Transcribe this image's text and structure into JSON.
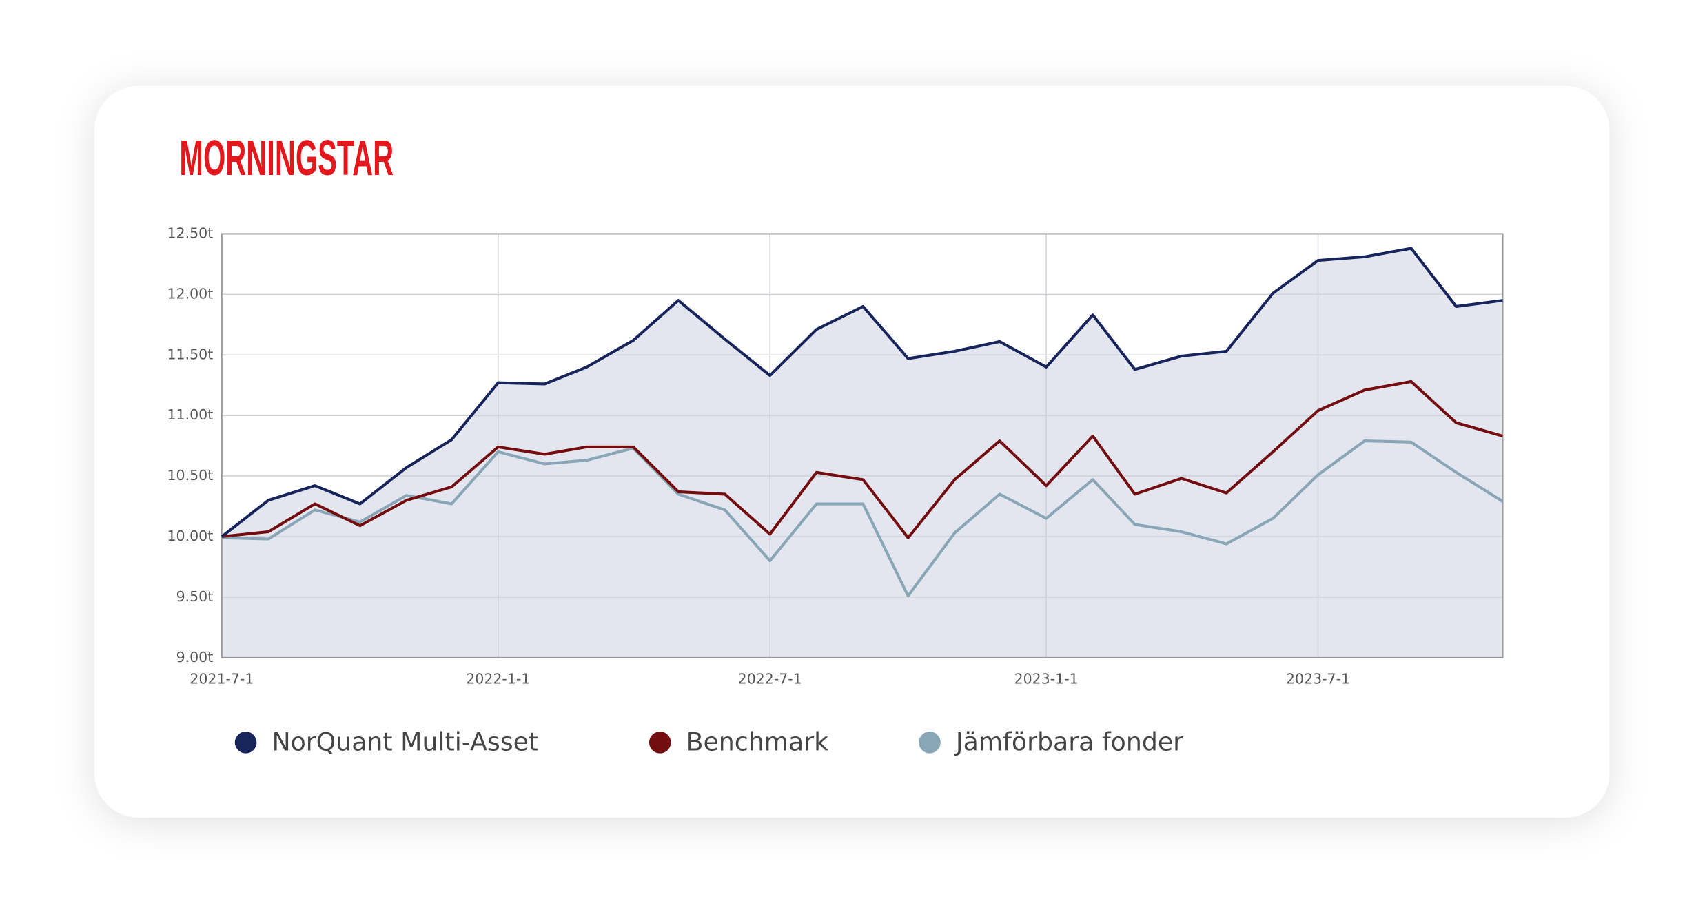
{
  "logo": "MORNINGSTAR",
  "chart_data": {
    "type": "line",
    "x": [
      "2021-7-1",
      "2021-8-1",
      "2021-9-1",
      "2021-10-1",
      "2021-11-1",
      "2021-12-1",
      "2022-1-1",
      "2022-2-1",
      "2022-3-1",
      "2022-4-1",
      "2022-5-1",
      "2022-6-1",
      "2022-7-1",
      "2022-8-1",
      "2022-9-1",
      "2022-10-1",
      "2022-11-1",
      "2022-12-1",
      "2023-1-1",
      "2023-2-1",
      "2023-3-1",
      "2023-4-1",
      "2023-5-1",
      "2023-6-1",
      "2023-7-1",
      "2023-8-1",
      "2023-9-1",
      "2023-10-1",
      "2023-11-1"
    ],
    "series": [
      {
        "name": "NorQuant Multi-Asset",
        "color": "#17255c",
        "area": true,
        "area_color": "#e4e6ef",
        "values": [
          10.0,
          10.3,
          10.42,
          10.27,
          10.57,
          10.8,
          11.27,
          11.26,
          11.4,
          11.62,
          11.95,
          11.63,
          11.33,
          11.71,
          11.9,
          11.47,
          11.53,
          11.61,
          11.4,
          11.83,
          11.38,
          11.49,
          11.53,
          12.01,
          12.28,
          12.31,
          12.38,
          11.9,
          11.95
        ]
      },
      {
        "name": "Benchmark",
        "color": "#730d0f",
        "values": [
          10.0,
          10.04,
          10.27,
          10.09,
          10.3,
          10.41,
          10.74,
          10.68,
          10.74,
          10.74,
          10.37,
          10.35,
          10.02,
          10.53,
          10.47,
          9.99,
          10.47,
          10.79,
          10.42,
          10.83,
          10.35,
          10.48,
          10.36,
          10.7,
          11.04,
          11.21,
          11.28,
          10.94,
          10.83
        ]
      },
      {
        "name": "Jämförbara fonder",
        "color": "#88a6b6",
        "values": [
          9.99,
          9.98,
          10.22,
          10.12,
          10.34,
          10.27,
          10.7,
          10.6,
          10.63,
          10.73,
          10.35,
          10.22,
          9.8,
          10.27,
          10.27,
          9.51,
          10.03,
          10.35,
          10.15,
          10.47,
          10.1,
          10.04,
          9.94,
          10.15,
          10.51,
          10.79,
          10.78,
          10.53,
          10.29
        ]
      }
    ],
    "xlim": [
      "2021-7-1",
      "2023-11-1"
    ],
    "xticks": [
      "2021-7-1",
      "2022-1-1",
      "2022-7-1",
      "2023-1-1",
      "2023-7-1"
    ],
    "ylim": [
      9,
      12.5
    ],
    "yticks": [
      {
        "value": 9,
        "label": "9.00t"
      },
      {
        "value": 9.5,
        "label": "9.50t"
      },
      {
        "value": 10,
        "label": "10.00t"
      },
      {
        "value": 10.5,
        "label": "10.50t"
      },
      {
        "value": 11,
        "label": "11.00t"
      },
      {
        "value": 11.5,
        "label": "11.50t"
      },
      {
        "value": 12,
        "label": "12.00t"
      },
      {
        "value": 12.5,
        "label": "12.50t"
      }
    ],
    "grid": true
  }
}
